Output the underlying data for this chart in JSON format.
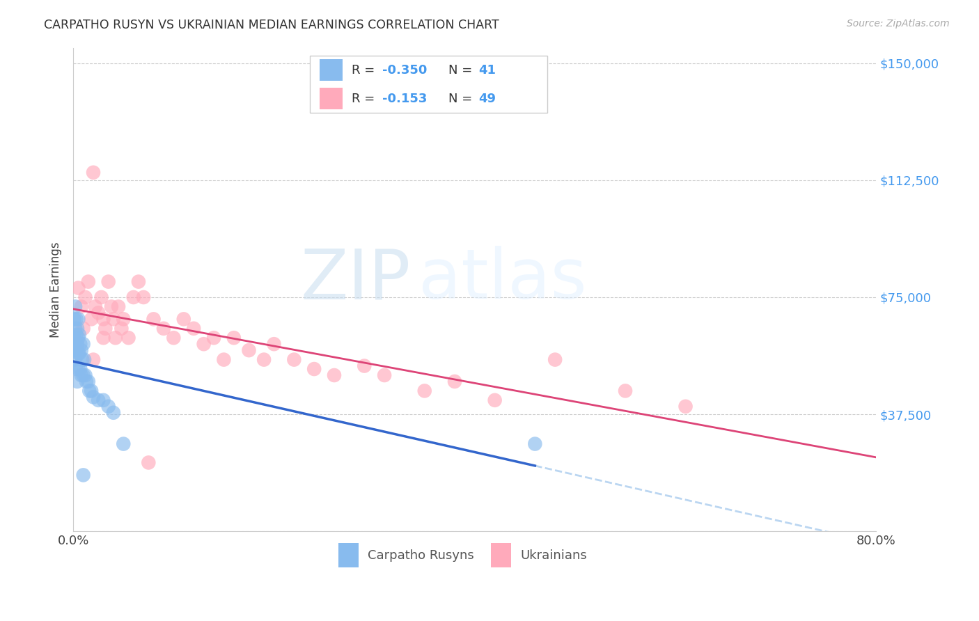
{
  "title": "CARPATHO RUSYN VS UKRAINIAN MEDIAN EARNINGS CORRELATION CHART",
  "source": "Source: ZipAtlas.com",
  "ylabel": "Median Earnings",
  "xlim": [
    0.0,
    0.8
  ],
  "ylim": [
    0,
    155000
  ],
  "yticks": [
    0,
    37500,
    75000,
    112500,
    150000
  ],
  "xticks": [
    0.0,
    0.1,
    0.2,
    0.3,
    0.4,
    0.5,
    0.6,
    0.7,
    0.8
  ],
  "watermark_zip": "ZIP",
  "watermark_atlas": "atlas",
  "legend_rusyn_R": "-0.350",
  "legend_rusyn_N": "41",
  "legend_ukr_R": "-0.153",
  "legend_ukr_N": "49",
  "blue_scatter_color": "#88bbee",
  "pink_scatter_color": "#ffaabb",
  "blue_line_color": "#3366cc",
  "pink_line_color": "#dd4477",
  "dashed_line_color": "#aaccee",
  "rusyn_x": [
    0.001,
    0.001,
    0.001,
    0.002,
    0.002,
    0.002,
    0.002,
    0.003,
    0.003,
    0.003,
    0.003,
    0.004,
    0.004,
    0.004,
    0.005,
    0.005,
    0.005,
    0.005,
    0.006,
    0.006,
    0.007,
    0.007,
    0.008,
    0.008,
    0.009,
    0.01,
    0.01,
    0.011,
    0.012,
    0.013,
    0.015,
    0.016,
    0.018,
    0.02,
    0.025,
    0.03,
    0.035,
    0.04,
    0.05,
    0.46,
    0.01
  ],
  "rusyn_y": [
    68000,
    62000,
    58000,
    72000,
    65000,
    60000,
    55000,
    68000,
    63000,
    58000,
    52000,
    65000,
    60000,
    48000,
    68000,
    62000,
    57000,
    52000,
    63000,
    57000,
    60000,
    52000,
    58000,
    50000,
    55000,
    60000,
    50000,
    55000,
    50000,
    48000,
    48000,
    45000,
    45000,
    43000,
    42000,
    42000,
    40000,
    38000,
    28000,
    28000,
    18000
  ],
  "ukr_x": [
    0.005,
    0.008,
    0.01,
    0.012,
    0.015,
    0.018,
    0.02,
    0.022,
    0.025,
    0.028,
    0.03,
    0.032,
    0.035,
    0.038,
    0.04,
    0.042,
    0.045,
    0.048,
    0.05,
    0.055,
    0.06,
    0.065,
    0.07,
    0.08,
    0.09,
    0.1,
    0.11,
    0.12,
    0.13,
    0.14,
    0.15,
    0.16,
    0.175,
    0.19,
    0.2,
    0.22,
    0.24,
    0.26,
    0.29,
    0.31,
    0.35,
    0.38,
    0.42,
    0.48,
    0.55,
    0.61,
    0.02,
    0.03,
    0.075
  ],
  "ukr_y": [
    78000,
    72000,
    65000,
    75000,
    80000,
    68000,
    115000,
    72000,
    70000,
    75000,
    68000,
    65000,
    80000,
    72000,
    68000,
    62000,
    72000,
    65000,
    68000,
    62000,
    75000,
    80000,
    75000,
    68000,
    65000,
    62000,
    68000,
    65000,
    60000,
    62000,
    55000,
    62000,
    58000,
    55000,
    60000,
    55000,
    52000,
    50000,
    53000,
    50000,
    45000,
    48000,
    42000,
    55000,
    45000,
    40000,
    55000,
    62000,
    22000
  ]
}
